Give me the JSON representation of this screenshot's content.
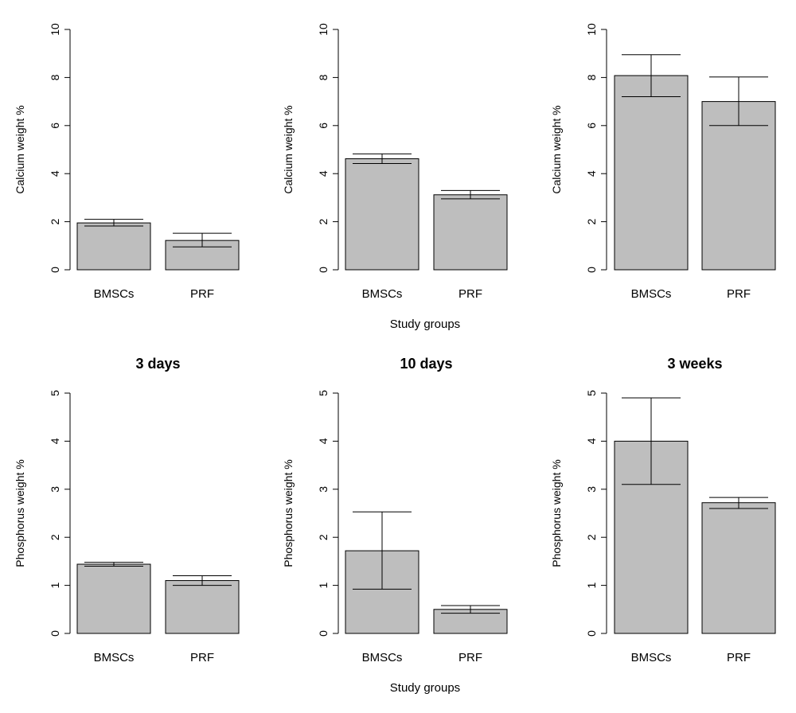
{
  "style": {
    "bar_fill": "#bebebe",
    "stroke": "#000000",
    "background": "#ffffff"
  },
  "row_xlabel": "Study groups",
  "chart_data": [
    {
      "type": "bar",
      "title": "",
      "xlabel": "",
      "ylabel": "Calcium weight %",
      "ylim": [
        0,
        10
      ],
      "yticks": [
        0,
        2,
        4,
        6,
        8,
        10
      ],
      "categories": [
        "BMSCs",
        "PRF"
      ],
      "values": [
        1.95,
        1.22
      ],
      "error_low": [
        1.82,
        0.95
      ],
      "error_high": [
        2.1,
        1.52
      ]
    },
    {
      "type": "bar",
      "title": "",
      "xlabel": "Study groups",
      "ylabel": "Calcium weight %",
      "ylim": [
        0,
        10
      ],
      "yticks": [
        0,
        2,
        4,
        6,
        8,
        10
      ],
      "categories": [
        "BMSCs",
        "PRF"
      ],
      "values": [
        4.62,
        3.12
      ],
      "error_low": [
        4.42,
        2.95
      ],
      "error_high": [
        4.82,
        3.3
      ]
    },
    {
      "type": "bar",
      "title": "",
      "xlabel": "",
      "ylabel": "Calcium weight %",
      "ylim": [
        0,
        10
      ],
      "yticks": [
        0,
        2,
        4,
        6,
        8,
        10
      ],
      "categories": [
        "BMSCs",
        "PRF"
      ],
      "values": [
        8.08,
        7.0
      ],
      "error_low": [
        7.2,
        6.0
      ],
      "error_high": [
        8.95,
        8.02
      ]
    },
    {
      "type": "bar",
      "title": "3 days",
      "xlabel": "",
      "ylabel": "Phosphorus weight %",
      "ylim": [
        0,
        5
      ],
      "yticks": [
        0,
        1,
        2,
        3,
        4,
        5
      ],
      "categories": [
        "BMSCs",
        "PRF"
      ],
      "values": [
        1.44,
        1.1
      ],
      "error_low": [
        1.4,
        1.0
      ],
      "error_high": [
        1.48,
        1.2
      ]
    },
    {
      "type": "bar",
      "title": "10 days",
      "xlabel": "Study groups",
      "ylabel": "Phosphorus weight %",
      "ylim": [
        0,
        5
      ],
      "yticks": [
        0,
        1,
        2,
        3,
        4,
        5
      ],
      "categories": [
        "BMSCs",
        "PRF"
      ],
      "values": [
        1.72,
        0.5
      ],
      "error_low": [
        0.92,
        0.42
      ],
      "error_high": [
        2.53,
        0.58
      ]
    },
    {
      "type": "bar",
      "title": "3 weeks",
      "xlabel": "",
      "ylabel": "Phosphorus weight %",
      "ylim": [
        0,
        5
      ],
      "yticks": [
        0,
        1,
        2,
        3,
        4,
        5
      ],
      "categories": [
        "BMSCs",
        "PRF"
      ],
      "values": [
        4.0,
        2.72
      ],
      "error_low": [
        3.1,
        2.6
      ],
      "error_high": [
        4.9,
        2.83
      ]
    }
  ]
}
